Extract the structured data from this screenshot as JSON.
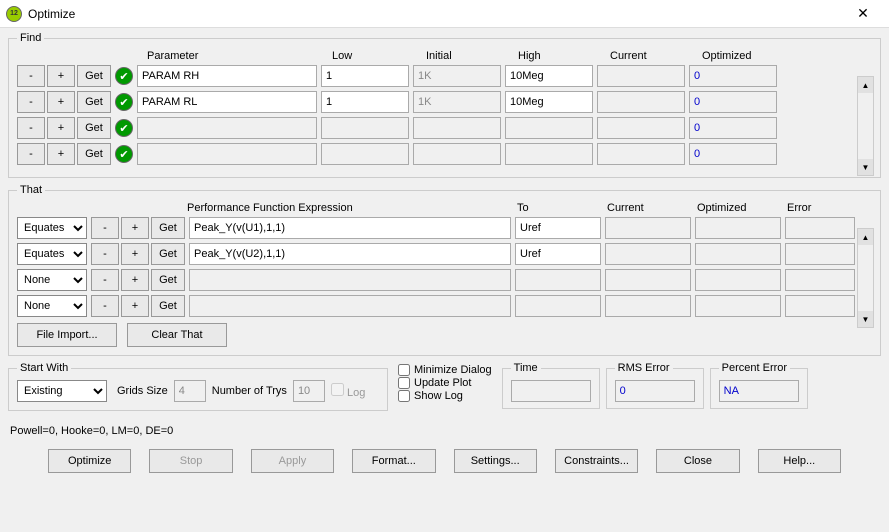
{
  "title": "Optimize",
  "find": {
    "legend": "Find",
    "headers": {
      "param": "Parameter",
      "low": "Low",
      "initial": "Initial",
      "high": "High",
      "current": "Current",
      "opt": "Optimized"
    },
    "btnMinus": "-",
    "btnPlus": "+",
    "btnGet": "Get",
    "rows": [
      {
        "param": "PARAM RH",
        "low": "1",
        "initial": "1K",
        "high": "10Meg",
        "current": "",
        "opt": "0"
      },
      {
        "param": "PARAM RL",
        "low": "1",
        "initial": "1K",
        "high": "10Meg",
        "current": "",
        "opt": "0"
      },
      {
        "param": "",
        "low": "",
        "initial": "",
        "high": "",
        "current": "",
        "opt": "0"
      },
      {
        "param": "",
        "low": "",
        "initial": "",
        "high": "",
        "current": "",
        "opt": "0"
      }
    ]
  },
  "that": {
    "legend": "That",
    "headers": {
      "pf": "Performance Function Expression",
      "to": "To",
      "cur": "Current",
      "opt": "Optimized",
      "err": "Error"
    },
    "rows": [
      {
        "op": "Equates",
        "expr": "Peak_Y(v(U1),1,1)",
        "to": "Uref",
        "cur": "",
        "opt": "",
        "err": ""
      },
      {
        "op": "Equates",
        "expr": "Peak_Y(v(U2),1,1)",
        "to": "Uref",
        "cur": "",
        "opt": "",
        "err": ""
      },
      {
        "op": "None",
        "expr": "",
        "to": "",
        "cur": "",
        "opt": "",
        "err": ""
      },
      {
        "op": "None",
        "expr": "",
        "to": "",
        "cur": "",
        "opt": "",
        "err": ""
      }
    ],
    "fileImport": "File Import...",
    "clearThat": "Clear That"
  },
  "startWith": {
    "legend": "Start With",
    "sel": "Existing",
    "gridsLabel": "Grids Size",
    "gridsVal": "4",
    "trysLabel": "Number of Trys",
    "trysVal": "10",
    "logLabel": "Log"
  },
  "checks": {
    "minDlg": "Minimize Dialog",
    "updPlot": "Update Plot",
    "showLog": "Show Log"
  },
  "stats": {
    "time": {
      "legend": "Time",
      "val": ""
    },
    "rms": {
      "legend": "RMS Error",
      "val": "0"
    },
    "pct": {
      "legend": "Percent Error",
      "val": "NA"
    }
  },
  "powLine": "Powell=0, Hooke=0, LM=0, DE=0",
  "buttons": {
    "optimize": "Optimize",
    "stop": "Stop",
    "apply": "Apply",
    "format": "Format...",
    "settings": "Settings...",
    "constraints": "Constraints...",
    "close": "Close",
    "help": "Help..."
  }
}
